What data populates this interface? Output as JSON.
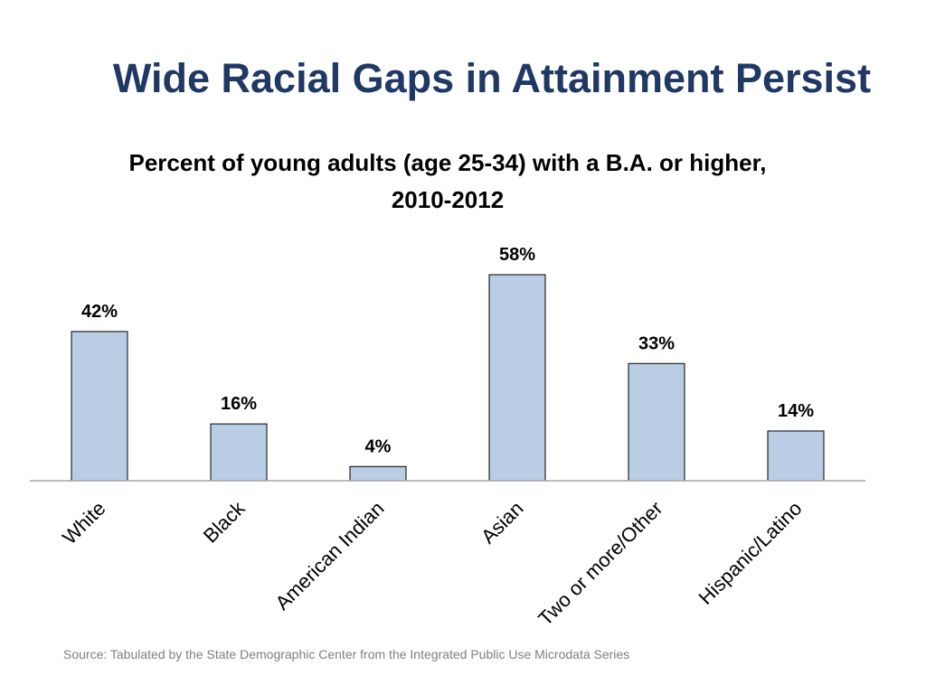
{
  "slide": {
    "title": "Wide Racial Gaps in Attainment Persist",
    "source": "Source: Tabulated by the State Demographic Center from the Integrated Public Use Microdata Series"
  },
  "colors": {
    "title": "#1f3864",
    "bar_fill": "#b9cde4",
    "bar_stroke": "#000000",
    "axis": "#a6a6a6"
  },
  "chart_data": {
    "type": "bar",
    "title": "Percent of young adults (age 25-34) with a B.A. or higher, 2010-2012",
    "categories": [
      "White",
      "Black",
      "American Indian",
      "Asian",
      "Two or more/Other",
      "Hispanic/Latino"
    ],
    "values": [
      42,
      16,
      4,
      58,
      33,
      14
    ],
    "data_labels": [
      "42%",
      "16%",
      "4%",
      "58%",
      "33%",
      "14%"
    ],
    "xlabel": "",
    "ylabel": "",
    "ylim": [
      0,
      60
    ],
    "grid": false,
    "legend": "none"
  }
}
